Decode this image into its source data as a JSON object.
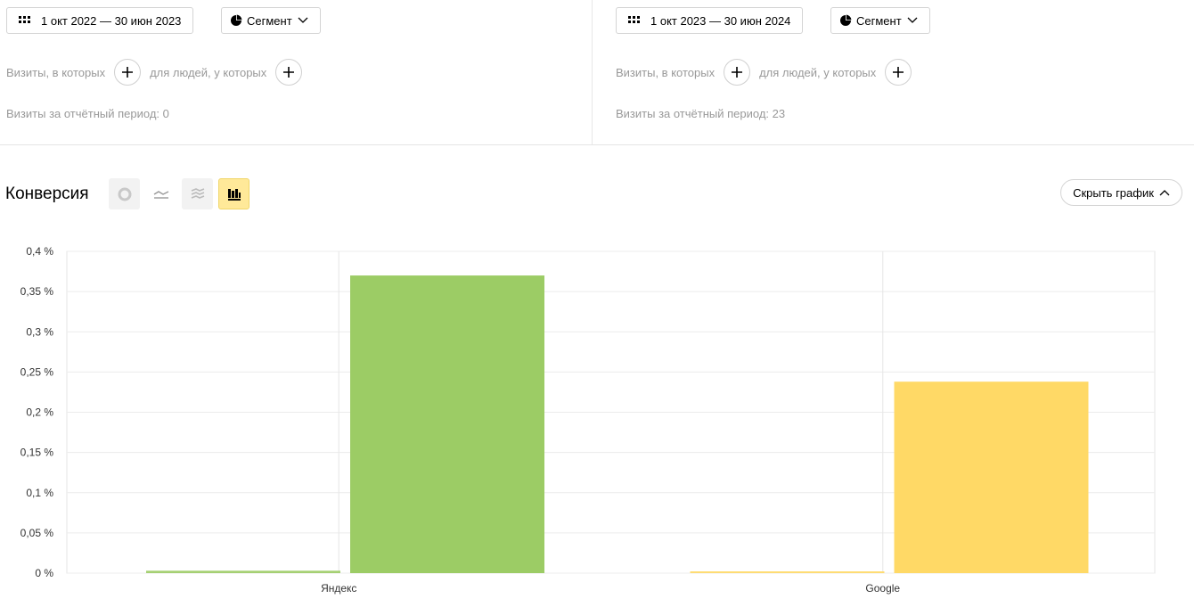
{
  "left_panel": {
    "date_range": "1 окт 2022 — 30 июн 2023",
    "segment_label": "Сегмент",
    "visits_condition": "Визиты, в которых",
    "people_condition": "для людей, у которых",
    "visits_summary": "Визиты за отчётный период: 0"
  },
  "right_panel": {
    "date_range": "1 окт 2023 — 30 июн 2024",
    "segment_label": "Сегмент",
    "visits_condition": "Визиты, в которых",
    "people_condition": "для людей, у которых",
    "visits_summary": "Визиты за отчётный период: 23"
  },
  "section": {
    "title": "Конверсия",
    "hide_chart_label": "Скрыть график",
    "view_modes": [
      "pie-chart-icon",
      "line-chart-icon",
      "stacked-area-icon",
      "bar-chart-icon"
    ],
    "active_view": "bar-chart-icon"
  },
  "colors": {
    "yandex": "#9ccc65",
    "google": "#ffd966"
  },
  "chart_data": {
    "type": "bar",
    "categories": [
      "Яндекс",
      "Google"
    ],
    "series": [
      {
        "values": [
          0.003,
          0.002
        ],
        "period": "first"
      },
      {
        "values": [
          0.37,
          0.238
        ],
        "period": "second"
      }
    ],
    "ylim": [
      0,
      0.4
    ],
    "yticks": [
      "0 %",
      "0,05 %",
      "0,1 %",
      "0,15 %",
      "0,2 %",
      "0,25 %",
      "0,3 %",
      "0,35 %",
      "0,4 %"
    ],
    "grid": true
  }
}
